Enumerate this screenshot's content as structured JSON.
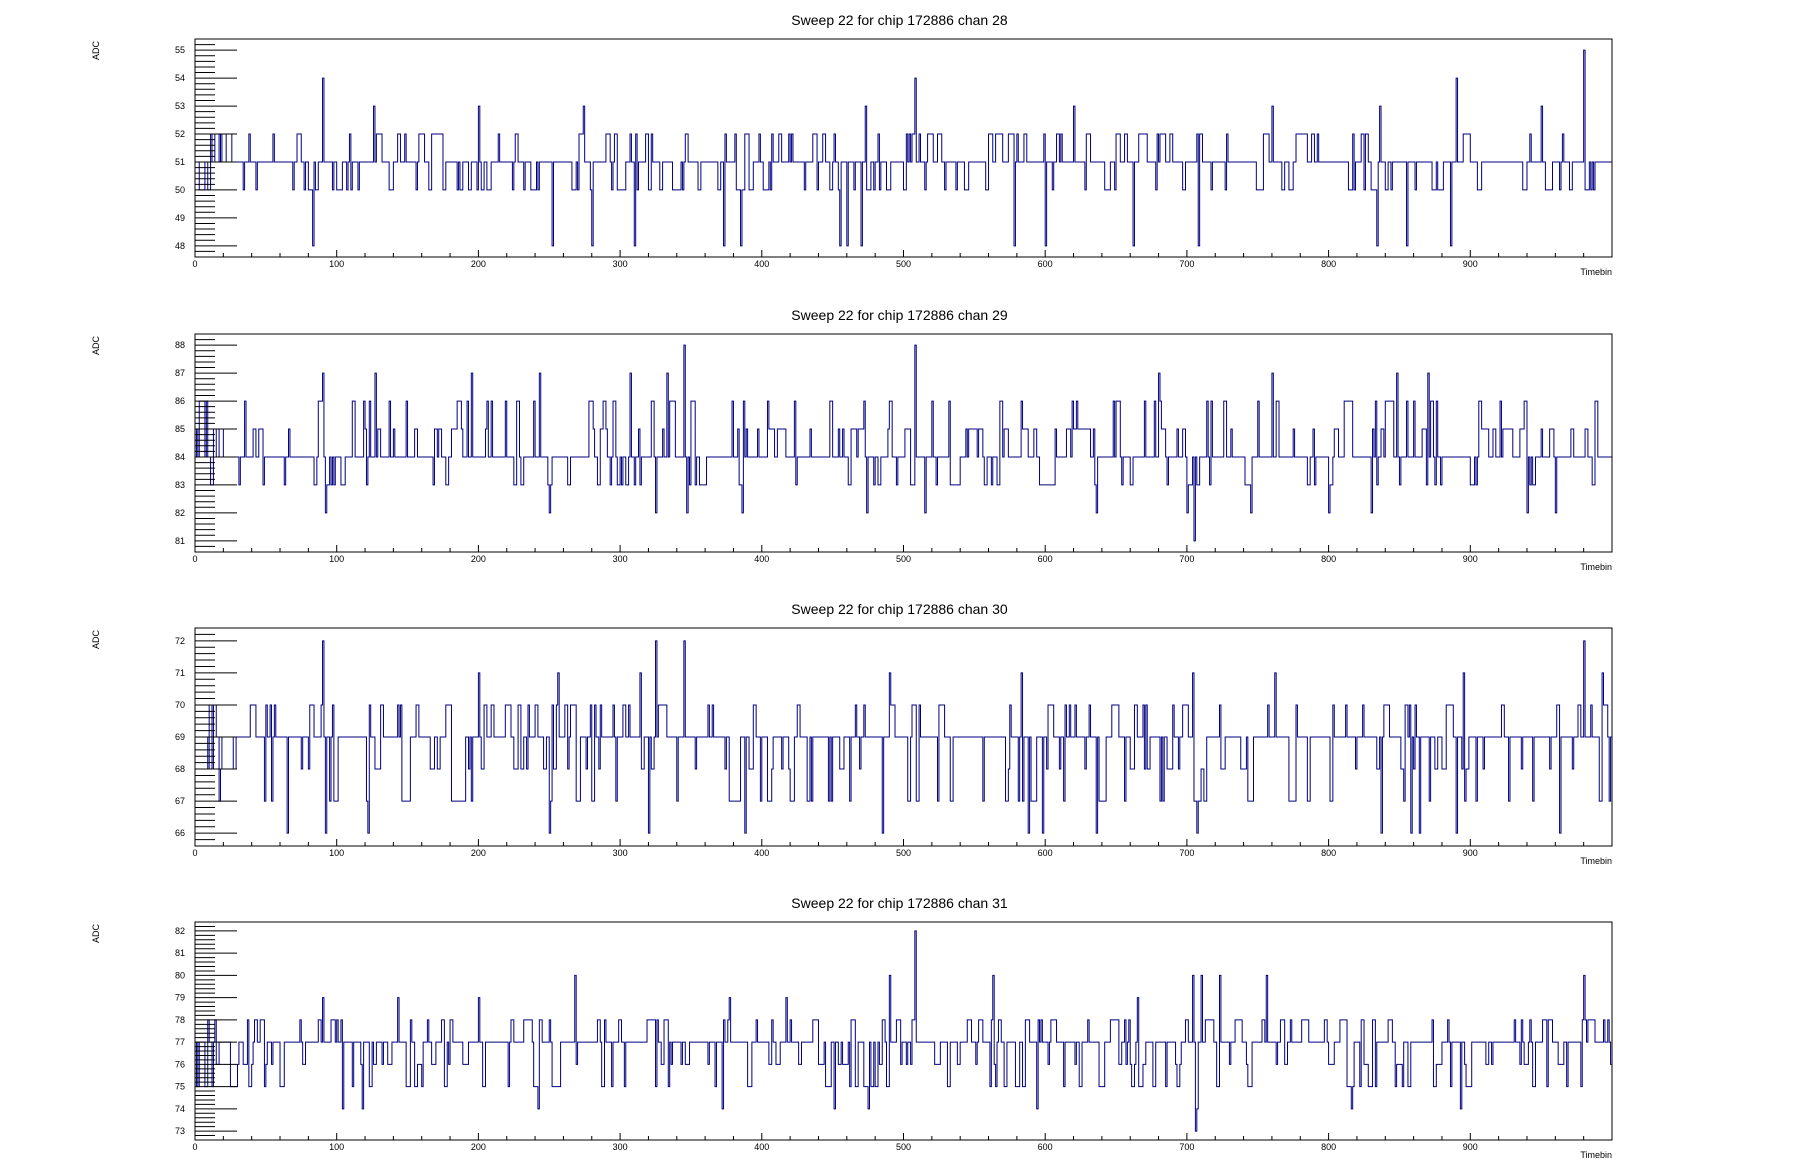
{
  "chart_data": [
    {
      "type": "line",
      "title": "Sweep 22 for chip 172886 chan 28",
      "xlabel": "Timebin",
      "ylabel": "ADC",
      "xlim": [
        0,
        1000
      ],
      "ylim": [
        47.6,
        55.4
      ],
      "xticks": [
        0,
        100,
        200,
        300,
        400,
        500,
        600,
        700,
        800,
        900
      ],
      "yticks": [
        48,
        49,
        50,
        51,
        52,
        53,
        54,
        55
      ],
      "line_color": "#000080",
      "series": [
        {
          "baseline": 51,
          "noise_values": [
            50,
            51,
            52
          ],
          "spikes": [
            [
              90,
              54
            ],
            [
              126,
              53
            ],
            [
              200,
              53
            ],
            [
              274,
              53
            ],
            [
              508,
              54
            ],
            [
              473,
              53
            ],
            [
              980,
              55
            ],
            [
              580,
              52
            ],
            [
              620,
              53
            ],
            [
              760,
              53
            ],
            [
              836,
              53
            ],
            [
              890,
              54
            ],
            [
              950,
              53
            ],
            [
              83,
              48
            ],
            [
              252,
              48
            ],
            [
              280,
              48
            ],
            [
              310,
              48
            ],
            [
              373,
              48
            ],
            [
              385,
              48
            ],
            [
              455,
              48
            ],
            [
              460,
              48
            ],
            [
              470,
              48
            ],
            [
              578,
              48
            ],
            [
              600,
              48
            ],
            [
              662,
              48
            ],
            [
              708,
              48
            ],
            [
              834,
              48
            ],
            [
              855,
              48
            ],
            [
              886,
              48
            ]
          ]
        }
      ]
    },
    {
      "type": "line",
      "title": "Sweep 22 for chip 172886 chan 29",
      "xlabel": "Timebin",
      "ylabel": "ADC",
      "xlim": [
        0,
        1000
      ],
      "ylim": [
        80.6,
        88.4
      ],
      "xticks": [
        0,
        100,
        200,
        300,
        400,
        500,
        600,
        700,
        800,
        900
      ],
      "yticks": [
        81,
        82,
        83,
        84,
        85,
        86,
        87,
        88
      ],
      "line_color": "#000080",
      "series": [
        {
          "baseline": 84,
          "noise_values": [
            83,
            84,
            85,
            86
          ],
          "spikes": [
            [
              345,
              88
            ],
            [
              508,
              88
            ],
            [
              90,
              87
            ],
            [
              127,
              87
            ],
            [
              195,
              87
            ],
            [
              243,
              87
            ],
            [
              307,
              87
            ],
            [
              333,
              87
            ],
            [
              680,
              87
            ],
            [
              760,
              87
            ],
            [
              848,
              87
            ],
            [
              870,
              87
            ],
            [
              940,
              87
            ],
            [
              705,
              81
            ],
            [
              92,
              82
            ],
            [
              250,
              82
            ],
            [
              325,
              82
            ],
            [
              347,
              82
            ],
            [
              386,
              82
            ],
            [
              474,
              82
            ],
            [
              515,
              82
            ],
            [
              636,
              82
            ],
            [
              700,
              82
            ],
            [
              745,
              82
            ],
            [
              800,
              82
            ],
            [
              830,
              82
            ],
            [
              940,
              82
            ],
            [
              960,
              82
            ]
          ]
        }
      ]
    },
    {
      "type": "line",
      "title": "Sweep 22 for chip 172886 chan 30",
      "xlabel": "Timebin",
      "ylabel": "ADC",
      "xlim": [
        0,
        1000
      ],
      "ylim": [
        65.6,
        72.4
      ],
      "xticks": [
        0,
        100,
        200,
        300,
        400,
        500,
        600,
        700,
        800,
        900
      ],
      "yticks": [
        66,
        67,
        68,
        69,
        70,
        71,
        72
      ],
      "line_color": "#000080",
      "series": [
        {
          "baseline": 69,
          "noise_values": [
            67,
            68,
            69,
            70
          ],
          "spikes": [
            [
              90,
              72
            ],
            [
              325,
              72
            ],
            [
              345,
              72
            ],
            [
              598,
              72
            ],
            [
              762,
              72
            ],
            [
              980,
              72
            ],
            [
              200,
              71
            ],
            [
              256,
              71
            ],
            [
              314,
              71
            ],
            [
              490,
              71
            ],
            [
              583,
              71
            ],
            [
              704,
              71
            ],
            [
              762,
              71
            ],
            [
              895,
              71
            ],
            [
              993,
              71
            ],
            [
              65,
              66
            ],
            [
              92,
              66
            ],
            [
              122,
              66
            ],
            [
              250,
              66
            ],
            [
              320,
              66
            ],
            [
              388,
              66
            ],
            [
              485,
              66
            ],
            [
              588,
              66
            ],
            [
              598,
              66
            ],
            [
              636,
              66
            ],
            [
              707,
              66
            ],
            [
              837,
              66
            ],
            [
              858,
              66
            ],
            [
              864,
              66
            ],
            [
              890,
              66
            ],
            [
              963,
              66
            ]
          ]
        }
      ]
    },
    {
      "type": "line",
      "title": "Sweep 22 for chip 172886 chan 31",
      "xlabel": "Timebin",
      "ylabel": "ADC",
      "xlim": [
        0,
        1000
      ],
      "ylim": [
        72.6,
        82.4
      ],
      "xticks": [
        0,
        100,
        200,
        300,
        400,
        500,
        600,
        700,
        800,
        900
      ],
      "yticks": [
        73,
        74,
        75,
        76,
        77,
        78,
        79,
        80,
        81,
        82
      ],
      "line_color": "#000080",
      "series": [
        {
          "baseline": 77,
          "noise_values": [
            75,
            76,
            77,
            78
          ],
          "spikes": [
            [
              508,
              82
            ],
            [
              268,
              80
            ],
            [
              490,
              80
            ],
            [
              563,
              80
            ],
            [
              704,
              80
            ],
            [
              710,
              80
            ],
            [
              723,
              80
            ],
            [
              756,
              80
            ],
            [
              893,
              80
            ],
            [
              980,
              80
            ],
            [
              90,
              79
            ],
            [
              143,
              79
            ],
            [
              200,
              79
            ],
            [
              377,
              79
            ],
            [
              417,
              79
            ],
            [
              665,
              79
            ],
            [
              706,
              73
            ],
            [
              104,
              74
            ],
            [
              118,
              74
            ],
            [
              242,
              74
            ],
            [
              372,
              74
            ],
            [
              451,
              74
            ],
            [
              475,
              74
            ],
            [
              594,
              74
            ],
            [
              707,
              74
            ],
            [
              816,
              74
            ],
            [
              893,
              74
            ]
          ]
        }
      ]
    }
  ]
}
